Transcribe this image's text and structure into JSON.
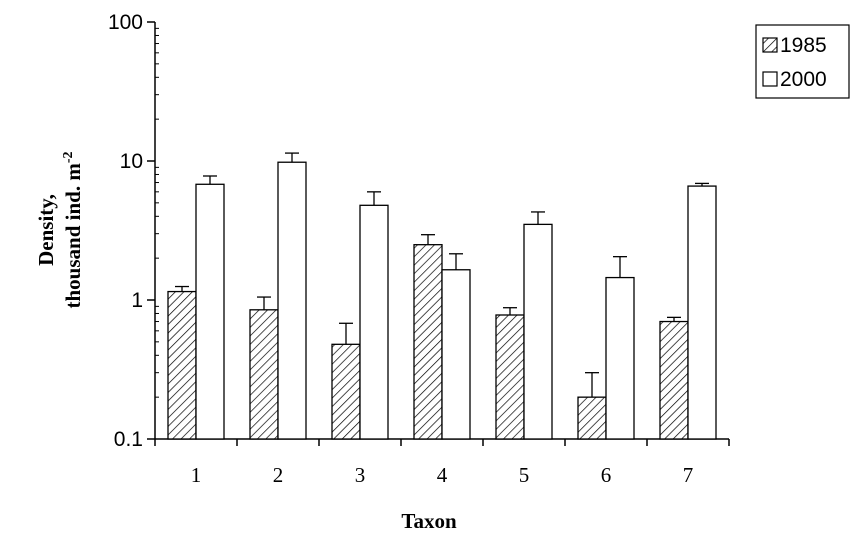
{
  "chart_data": {
    "type": "bar",
    "categories": [
      "1",
      "2",
      "3",
      "4",
      "5",
      "6",
      "7"
    ],
    "series": [
      {
        "name": "1985",
        "values": [
          1.15,
          0.85,
          0.48,
          2.5,
          0.78,
          0.2,
          0.7
        ],
        "errors": [
          0.1,
          0.2,
          0.2,
          0.45,
          0.1,
          0.1,
          0.05
        ],
        "fill": "hatched"
      },
      {
        "name": "2000",
        "values": [
          6.8,
          9.8,
          4.8,
          1.65,
          3.5,
          1.45,
          6.6
        ],
        "errors": [
          1.0,
          1.6,
          1.2,
          0.5,
          0.8,
          0.6,
          0.3
        ],
        "fill": "white"
      }
    ],
    "y_scale": "log",
    "ylim": [
      0.1,
      100
    ],
    "yticks": [
      "0.1",
      "1",
      "10",
      "100"
    ],
    "xlabel": "Taxon",
    "ylabel_line1": "Density,",
    "ylabel_line2": "thousand  ind. m",
    "ylabel_superscript": "-2",
    "legend_position": "top-right",
    "colors": {
      "bar_stroke": "#000000",
      "hatch": "#000000",
      "background": "#ffffff"
    }
  }
}
